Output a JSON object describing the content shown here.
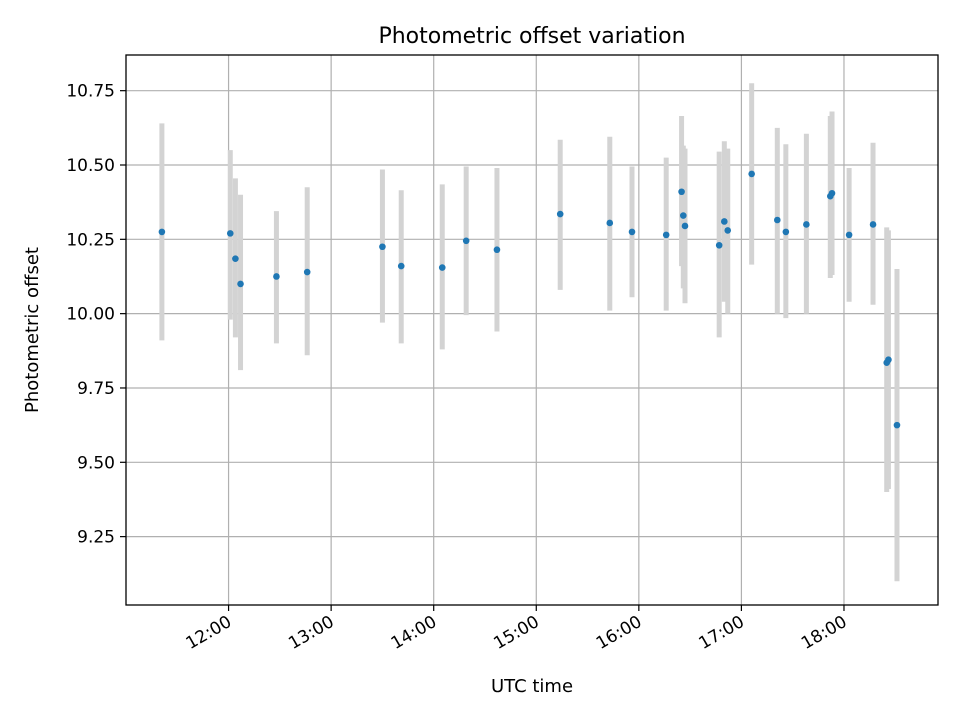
{
  "chart_data": {
    "type": "scatter",
    "title": "Photometric offset variation",
    "xlabel": "UTC time",
    "ylabel": "Photometric offset",
    "x_ticks": [
      "12:00",
      "13:00",
      "14:00",
      "15:00",
      "16:00",
      "17:00",
      "18:00"
    ],
    "y_ticks": [
      "9.25",
      "9.50",
      "9.75",
      "10.00",
      "10.25",
      "10.50",
      "10.75"
    ],
    "xlim": [
      "11:00",
      "18:55"
    ],
    "ylim": [
      9.02,
      10.87
    ],
    "grid": true,
    "colors": {
      "point": "#1f77b4",
      "errorbar": "#d3d3d3"
    },
    "points": [
      {
        "x": "11:21",
        "y": 10.275,
        "ylow": 9.91,
        "yhigh": 10.64
      },
      {
        "x": "12:01",
        "y": 10.27,
        "ylow": 9.98,
        "yhigh": 10.55
      },
      {
        "x": "12:04",
        "y": 10.185,
        "ylow": 9.92,
        "yhigh": 10.455
      },
      {
        "x": "12:07",
        "y": 10.1,
        "ylow": 9.81,
        "yhigh": 10.4
      },
      {
        "x": "12:28",
        "y": 10.125,
        "ylow": 9.9,
        "yhigh": 10.345
      },
      {
        "x": "12:46",
        "y": 10.14,
        "ylow": 9.86,
        "yhigh": 10.425
      },
      {
        "x": "13:30",
        "y": 10.225,
        "ylow": 9.97,
        "yhigh": 10.485
      },
      {
        "x": "13:41",
        "y": 10.16,
        "ylow": 9.9,
        "yhigh": 10.415
      },
      {
        "x": "14:05",
        "y": 10.155,
        "ylow": 9.88,
        "yhigh": 10.435
      },
      {
        "x": "14:19",
        "y": 10.245,
        "ylow": 9.995,
        "yhigh": 10.495
      },
      {
        "x": "14:37",
        "y": 10.215,
        "ylow": 9.94,
        "yhigh": 10.49
      },
      {
        "x": "15:14",
        "y": 10.335,
        "ylow": 10.08,
        "yhigh": 10.585
      },
      {
        "x": "15:43",
        "y": 10.305,
        "ylow": 10.01,
        "yhigh": 10.595
      },
      {
        "x": "15:56",
        "y": 10.275,
        "ylow": 10.055,
        "yhigh": 10.495
      },
      {
        "x": "16:16",
        "y": 10.265,
        "ylow": 10.01,
        "yhigh": 10.525
      },
      {
        "x": "16:25",
        "y": 10.41,
        "ylow": 10.16,
        "yhigh": 10.665
      },
      {
        "x": "16:26",
        "y": 10.33,
        "ylow": 10.085,
        "yhigh": 10.565
      },
      {
        "x": "16:27",
        "y": 10.295,
        "ylow": 10.035,
        "yhigh": 10.555
      },
      {
        "x": "16:47",
        "y": 10.23,
        "ylow": 9.92,
        "yhigh": 10.545
      },
      {
        "x": "16:50",
        "y": 10.31,
        "ylow": 10.04,
        "yhigh": 10.58
      },
      {
        "x": "16:52",
        "y": 10.28,
        "ylow": 10.0,
        "yhigh": 10.555
      },
      {
        "x": "17:06",
        "y": 10.47,
        "ylow": 10.165,
        "yhigh": 10.775
      },
      {
        "x": "17:21",
        "y": 10.315,
        "ylow": 10.0,
        "yhigh": 10.625
      },
      {
        "x": "17:26",
        "y": 10.275,
        "ylow": 9.985,
        "yhigh": 10.57
      },
      {
        "x": "17:38",
        "y": 10.3,
        "ylow": 10.0,
        "yhigh": 10.605
      },
      {
        "x": "17:52",
        "y": 10.395,
        "ylow": 10.12,
        "yhigh": 10.665
      },
      {
        "x": "17:53",
        "y": 10.405,
        "ylow": 10.13,
        "yhigh": 10.68
      },
      {
        "x": "18:03",
        "y": 10.265,
        "ylow": 10.04,
        "yhigh": 10.49
      },
      {
        "x": "18:17",
        "y": 10.3,
        "ylow": 10.03,
        "yhigh": 10.575
      },
      {
        "x": "18:25",
        "y": 9.835,
        "ylow": 9.4,
        "yhigh": 10.29
      },
      {
        "x": "18:26",
        "y": 9.845,
        "ylow": 9.41,
        "yhigh": 10.28
      },
      {
        "x": "18:31",
        "y": 9.625,
        "ylow": 9.1,
        "yhigh": 10.15
      }
    ]
  }
}
